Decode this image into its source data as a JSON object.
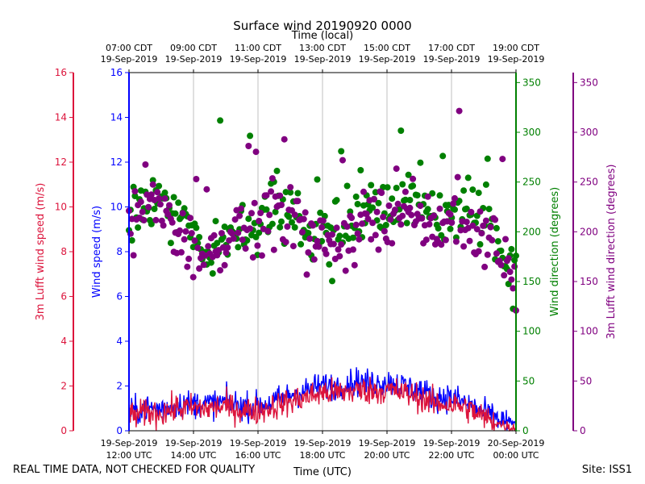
{
  "chart_data": {
    "type": "scatter",
    "title": "Surface wind 20190920 0000",
    "top_axis_label": "Time (local)",
    "bottom_axis_label": "Time (UTC)",
    "x_range_utc_hours": [
      12,
      24
    ],
    "top_ticks": [
      {
        "hour": 12,
        "line1": "07:00 CDT",
        "line2": "19-Sep-2019"
      },
      {
        "hour": 14,
        "line1": "09:00 CDT",
        "line2": "19-Sep-2019"
      },
      {
        "hour": 16,
        "line1": "11:00 CDT",
        "line2": "19-Sep-2019"
      },
      {
        "hour": 18,
        "line1": "13:00 CDT",
        "line2": "19-Sep-2019"
      },
      {
        "hour": 20,
        "line1": "15:00 CDT",
        "line2": "19-Sep-2019"
      },
      {
        "hour": 22,
        "line1": "17:00 CDT",
        "line2": "19-Sep-2019"
      },
      {
        "hour": 24,
        "line1": "19:00 CDT",
        "line2": "19-Sep-2019"
      }
    ],
    "bottom_ticks": [
      {
        "hour": 12,
        "line1": "19-Sep-2019",
        "line2": "12:00 UTC"
      },
      {
        "hour": 14,
        "line1": "19-Sep-2019",
        "line2": "14:00 UTC"
      },
      {
        "hour": 16,
        "line1": "19-Sep-2019",
        "line2": "16:00 UTC"
      },
      {
        "hour": 18,
        "line1": "19-Sep-2019",
        "line2": "18:00 UTC"
      },
      {
        "hour": 20,
        "line1": "19-Sep-2019",
        "line2": "20:00 UTC"
      },
      {
        "hour": 22,
        "line1": "19-Sep-2019",
        "line2": "22:00 UTC"
      },
      {
        "hour": 24,
        "line1": "20-Sep-2019",
        "line2": "00:00 UTC"
      }
    ],
    "axes": {
      "lufft_speed": {
        "label": "3m Lufft wind speed (m/s)",
        "ylim": [
          0,
          16
        ],
        "ticks": [
          "0",
          "2",
          "4",
          "6",
          "8",
          "10",
          "12",
          "14",
          "16"
        ],
        "color": "#dc143c"
      },
      "wind_speed": {
        "label": "Wind speed (m/s)",
        "ylim": [
          0,
          16
        ],
        "ticks": [
          "0",
          "2",
          "4",
          "6",
          "8",
          "10",
          "12",
          "14",
          "16"
        ],
        "color": "#0000ff"
      },
      "wind_direction": {
        "label": "Wind direction (degrees)",
        "ylim": [
          0,
          360
        ],
        "ticks": [
          "0",
          "50",
          "100",
          "150",
          "200",
          "250",
          "300",
          "350"
        ],
        "color": "#008000"
      },
      "lufft_direction": {
        "label": "3m Lufft wind direction (degrees)",
        "ylim": [
          0,
          360
        ],
        "ticks": [
          "0",
          "50",
          "100",
          "150",
          "200",
          "250",
          "300",
          "350"
        ],
        "color": "#800080"
      }
    },
    "series": [
      {
        "name": "Wind speed (m/s)",
        "axis": "wind_speed",
        "style": "line",
        "color": "#0000ff",
        "x": [
          12.0,
          12.5,
          13.0,
          13.5,
          14.0,
          14.5,
          15.0,
          15.5,
          16.0,
          16.5,
          17.0,
          17.5,
          18.0,
          18.5,
          19.0,
          19.5,
          20.0,
          20.5,
          21.0,
          21.5,
          22.0,
          22.5,
          23.0,
          23.5,
          24.0
        ],
        "values": [
          0.8,
          1.0,
          1.0,
          1.2,
          1.2,
          1.2,
          1.3,
          1.1,
          1.1,
          1.3,
          1.6,
          1.8,
          2.0,
          2.0,
          2.2,
          2.1,
          2.2,
          2.0,
          1.8,
          1.5,
          1.5,
          1.2,
          0.8,
          0.5,
          0.3
        ]
      },
      {
        "name": "3m Lufft wind speed (m/s)",
        "axis": "lufft_speed",
        "style": "line",
        "color": "#dc143c",
        "x": [
          12.0,
          12.5,
          13.0,
          13.5,
          14.0,
          14.5,
          15.0,
          15.5,
          16.0,
          16.5,
          17.0,
          17.5,
          18.0,
          18.5,
          19.0,
          19.5,
          20.0,
          20.5,
          21.0,
          21.5,
          22.0,
          22.5,
          23.0,
          23.5,
          24.0
        ],
        "values": [
          0.6,
          0.8,
          0.8,
          1.0,
          1.0,
          1.0,
          1.1,
          0.9,
          0.9,
          1.1,
          1.3,
          1.5,
          1.7,
          1.7,
          1.8,
          1.8,
          1.8,
          1.7,
          1.5,
          1.2,
          1.2,
          1.0,
          0.6,
          0.3,
          0.1
        ]
      },
      {
        "name": "Wind direction (degrees)",
        "axis": "wind_direction",
        "style": "scatter",
        "color": "#008000",
        "x": [
          12.0,
          12.5,
          13.0,
          13.5,
          14.0,
          14.5,
          15.0,
          15.5,
          16.0,
          16.5,
          17.0,
          17.5,
          18.0,
          18.5,
          19.0,
          19.5,
          20.0,
          20.5,
          21.0,
          21.5,
          22.0,
          22.5,
          23.0,
          23.5,
          24.0
        ],
        "values": [
          205,
          230,
          225,
          215,
          195,
          185,
          190,
          205,
          215,
          225,
          225,
          200,
          195,
          200,
          210,
          225,
          225,
          235,
          225,
          215,
          225,
          210,
          215,
          185,
          160
        ]
      },
      {
        "name": "3m Lufft wind direction (degrees)",
        "axis": "lufft_direction",
        "style": "scatter",
        "color": "#800080",
        "x": [
          12.0,
          12.5,
          13.0,
          13.5,
          14.0,
          14.5,
          15.0,
          15.5,
          16.0,
          16.5,
          17.0,
          17.5,
          18.0,
          18.5,
          19.0,
          19.5,
          20.0,
          20.5,
          21.0,
          21.5,
          22.0,
          22.5,
          23.0,
          23.5,
          24.0
        ],
        "values": [
          200,
          235,
          215,
          205,
          185,
          180,
          185,
          200,
          205,
          220,
          215,
          195,
          190,
          190,
          200,
          215,
          210,
          220,
          210,
          205,
          210,
          205,
          200,
          185,
          150
        ]
      }
    ]
  },
  "footer": {
    "left": "REAL TIME DATA, NOT CHECKED FOR QUALITY",
    "right": "Site: ISS1"
  }
}
